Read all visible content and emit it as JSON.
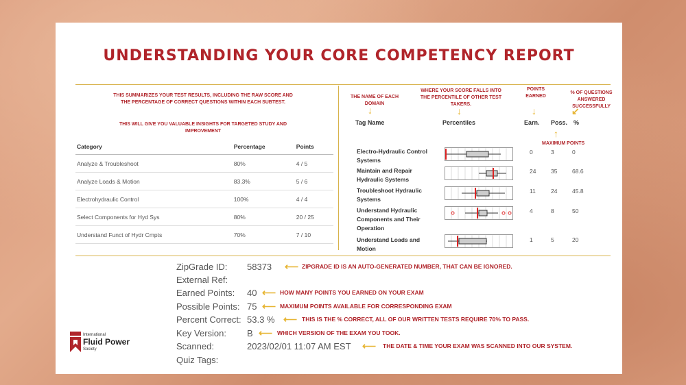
{
  "title": "UNDERSTANDING YOUR CORE COMPETENCY REPORT",
  "left_notes": {
    "summary": "This summarizes your test results, including the raw score and the percentage of correct questions within each subtest.",
    "insight": "This will give you valuable insights for targeted study and improvement"
  },
  "category_table": {
    "headers": [
      "Category",
      "Percentage",
      "Points"
    ],
    "rows": [
      [
        "Analyze & Troubleshoot",
        "80%",
        "4 / 5"
      ],
      [
        "Analyze Loads & Motion",
        "83.3%",
        "5 / 6"
      ],
      [
        "Electrohydraulic Control",
        "100%",
        "4 / 4"
      ],
      [
        "Select Components for Hyd Sys",
        "80%",
        "20 / 25"
      ],
      [
        "Understand Funct of Hydr Cmpts",
        "70%",
        "7 / 10"
      ]
    ]
  },
  "right_notes": {
    "domain_name": "The name of each domain",
    "percentile": "Where your score falls into the percentile of other test takers.",
    "points_earned": "Points earned",
    "pct_answered": "% of questions answered successfully",
    "max_points": "Maximum points"
  },
  "report_table": {
    "headers": {
      "tag": "Tag Name",
      "pct": "Percentiles",
      "earn": "Earn.",
      "poss": "Poss.",
      "percent": "%"
    },
    "rows": [
      {
        "name": "Electro-Hydraulic Control Systems",
        "earn": "0",
        "poss": "3",
        "pct": "0"
      },
      {
        "name": "Maintain and Repair Hydraulic Systems",
        "earn": "24",
        "poss": "35",
        "pct": "68.6"
      },
      {
        "name": "Troubleshoot Hydraulic Systems",
        "earn": "11",
        "poss": "24",
        "pct": "45.8"
      },
      {
        "name": "Understand Hydraulic Components and Their Operation",
        "earn": "4",
        "poss": "8",
        "pct": "50"
      },
      {
        "name": "Understand Loads and Motion",
        "earn": "1",
        "poss": "5",
        "pct": "20"
      }
    ]
  },
  "info": {
    "zipgrade_label": "ZipGrade ID:",
    "zipgrade_value": "58373",
    "zipgrade_note": "ZipGrade ID is an auto-generated number, that can be ignored.",
    "extref_label": "External Ref:",
    "earned_label": "Earned Points:",
    "earned_value": "40",
    "earned_note": "How many points you earned on your exam",
    "possible_label": "Possible Points:",
    "possible_value": "75",
    "possible_note": "Maximum points available for corresponding exam",
    "percent_label": "Percent Correct:",
    "percent_value": "53.3 %",
    "percent_note": "This is the % correct, all of our written tests require 70% to pass.",
    "key_label": "Key Version:",
    "key_value": "B",
    "key_note": "Which version of the exam you took.",
    "scanned_label": "Scanned:",
    "scanned_value": "2023/02/01 11:07 AM EST",
    "scanned_note": "The date & time your exam was scanned into our system.",
    "quiztags_label": "Quiz Tags:"
  },
  "logo": {
    "small": "International",
    "main": "Fluid Power",
    "sub": "Society"
  },
  "colors": {
    "accent": "#b0242a",
    "gold": "#e7b533",
    "rule": "#d8b24a"
  }
}
